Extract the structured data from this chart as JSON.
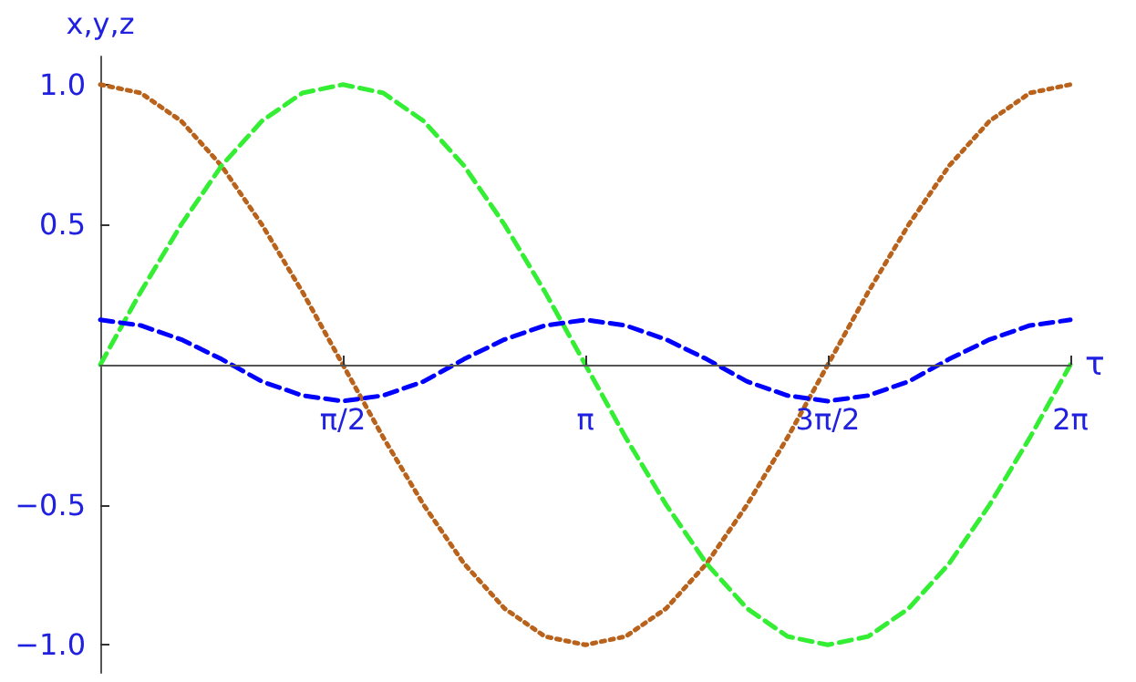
{
  "chart_data": {
    "type": "line",
    "xlabel": "τ",
    "ylabel": "x,y,z",
    "x": [
      0,
      0.262,
      0.524,
      0.785,
      1.047,
      1.309,
      1.571,
      1.833,
      2.094,
      2.356,
      2.618,
      2.88,
      3.142,
      3.403,
      3.665,
      3.927,
      4.189,
      4.451,
      4.712,
      4.974,
      5.236,
      5.498,
      5.76,
      6.021,
      6.283
    ],
    "series": [
      {
        "color": "#b8621b",
        "line_style": "dotted",
        "values": [
          1,
          0.97,
          0.87,
          0.71,
          0.5,
          0.26,
          0,
          -0.26,
          -0.5,
          -0.71,
          -0.87,
          -0.97,
          -1,
          -0.97,
          -0.87,
          -0.71,
          -0.5,
          -0.26,
          0,
          0.26,
          0.5,
          0.71,
          0.87,
          0.97,
          1
        ]
      },
      {
        "color": "#33ee33",
        "line_style": "dashed",
        "values": [
          0,
          0.26,
          0.5,
          0.71,
          0.87,
          0.97,
          1,
          0.97,
          0.87,
          0.71,
          0.5,
          0.26,
          0,
          -0.26,
          -0.5,
          -0.71,
          -0.87,
          -0.97,
          -1,
          -0.97,
          -0.87,
          -0.71,
          -0.5,
          -0.26,
          0
        ]
      },
      {
        "color": "#0000ff",
        "line_style": "dashed",
        "values": [
          0.16,
          0.14,
          0.09,
          0.02,
          -0.06,
          -0.11,
          -0.13,
          -0.11,
          -0.06,
          0.02,
          0.09,
          0.14,
          0.16,
          0.14,
          0.09,
          0.02,
          -0.06,
          -0.11,
          -0.13,
          -0.11,
          -0.06,
          0.02,
          0.09,
          0.14,
          0.16
        ]
      }
    ],
    "xlim": [
      0,
      6.283
    ],
    "xticks": [
      {
        "value": 1.571,
        "label": "π/2"
      },
      {
        "value": 3.142,
        "label": "π"
      },
      {
        "value": 4.712,
        "label": "3π/2"
      },
      {
        "value": 6.283,
        "label": "2π"
      }
    ],
    "ylim": [
      -1.1,
      1.1
    ],
    "yticks": [
      {
        "value": -1,
        "label": "−1.0"
      },
      {
        "value": -0.5,
        "label": "−0.5"
      },
      {
        "value": 0.5,
        "label": "0.5"
      },
      {
        "value": 1,
        "label": "1.0"
      }
    ],
    "grid": false,
    "marker": "none"
  }
}
